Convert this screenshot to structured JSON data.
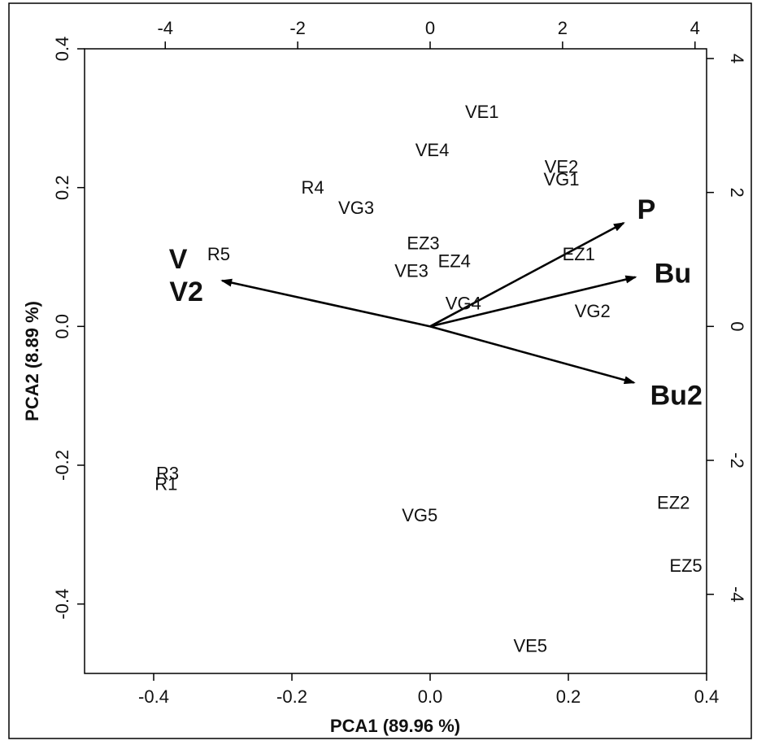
{
  "chart_data": {
    "type": "scatter",
    "subtype": "pca-biplot",
    "title": "",
    "xlabel": "PCA1 (89.96 %)",
    "ylabel": "PCA2 (8.89 %)",
    "xlim": [
      -0.5,
      0.4
    ],
    "ylim": [
      -0.5,
      0.4
    ],
    "xticks": [
      -0.4,
      -0.2,
      0.0,
      0.2,
      0.4
    ],
    "yticks": [
      -0.4,
      -0.2,
      0.0,
      0.2,
      0.4
    ],
    "xtick_labels": [
      "-0.4",
      "-0.2",
      "0.0",
      "0.2",
      "0.4"
    ],
    "ytick_labels": [
      "-0.4",
      "-0.2",
      "0.0",
      "0.2",
      "0.4"
    ],
    "top_axis": {
      "ticks": [
        -4,
        -2,
        0,
        2,
        4
      ],
      "tick_labels": [
        "-4",
        "-2",
        "0",
        "2",
        "4"
      ]
    },
    "right_axis": {
      "ticks": [
        -4,
        -2,
        0,
        2,
        4
      ],
      "tick_labels": [
        "-4",
        "-2",
        "0",
        "2",
        "4"
      ]
    },
    "grid": false,
    "legend": "none",
    "observations": [
      {
        "label": "VE1",
        "x": 0.075,
        "y": 0.309
      },
      {
        "label": "VE4",
        "x": 0.003,
        "y": 0.254
      },
      {
        "label": "VE2",
        "x": 0.19,
        "y": 0.23
      },
      {
        "label": "VG1",
        "x": 0.19,
        "y": 0.212
      },
      {
        "label": "R4",
        "x": -0.17,
        "y": 0.2
      },
      {
        "label": "VG3",
        "x": -0.107,
        "y": 0.171
      },
      {
        "label": "R5",
        "x": -0.306,
        "y": 0.104
      },
      {
        "label": "EZ3",
        "x": -0.01,
        "y": 0.12
      },
      {
        "label": "EZ4",
        "x": 0.035,
        "y": 0.094
      },
      {
        "label": "VE3",
        "x": -0.027,
        "y": 0.08
      },
      {
        "label": "EZ1",
        "x": 0.215,
        "y": 0.104
      },
      {
        "label": "VG4",
        "x": 0.048,
        "y": 0.033
      },
      {
        "label": "VG2",
        "x": 0.235,
        "y": 0.022
      },
      {
        "label": "R3",
        "x": -0.38,
        "y": -0.212
      },
      {
        "label": "R1",
        "x": -0.382,
        "y": -0.227
      },
      {
        "label": "VG5",
        "x": -0.015,
        "y": -0.272
      },
      {
        "label": "EZ2",
        "x": 0.352,
        "y": -0.254
      },
      {
        "label": "EZ5",
        "x": 0.37,
        "y": -0.345
      },
      {
        "label": "VE5",
        "x": 0.145,
        "y": -0.46
      }
    ],
    "loadings": [
      {
        "label": "P",
        "x": 0.28,
        "y": 0.149
      },
      {
        "label": "Bu",
        "x": 0.297,
        "y": 0.071
      },
      {
        "label": "Bu2",
        "x": 0.295,
        "y": -0.081
      },
      {
        "label": "V",
        "x": -0.301,
        "y": 0.066
      },
      {
        "label": "V2",
        "x": -0.301,
        "y": 0.066
      }
    ]
  }
}
